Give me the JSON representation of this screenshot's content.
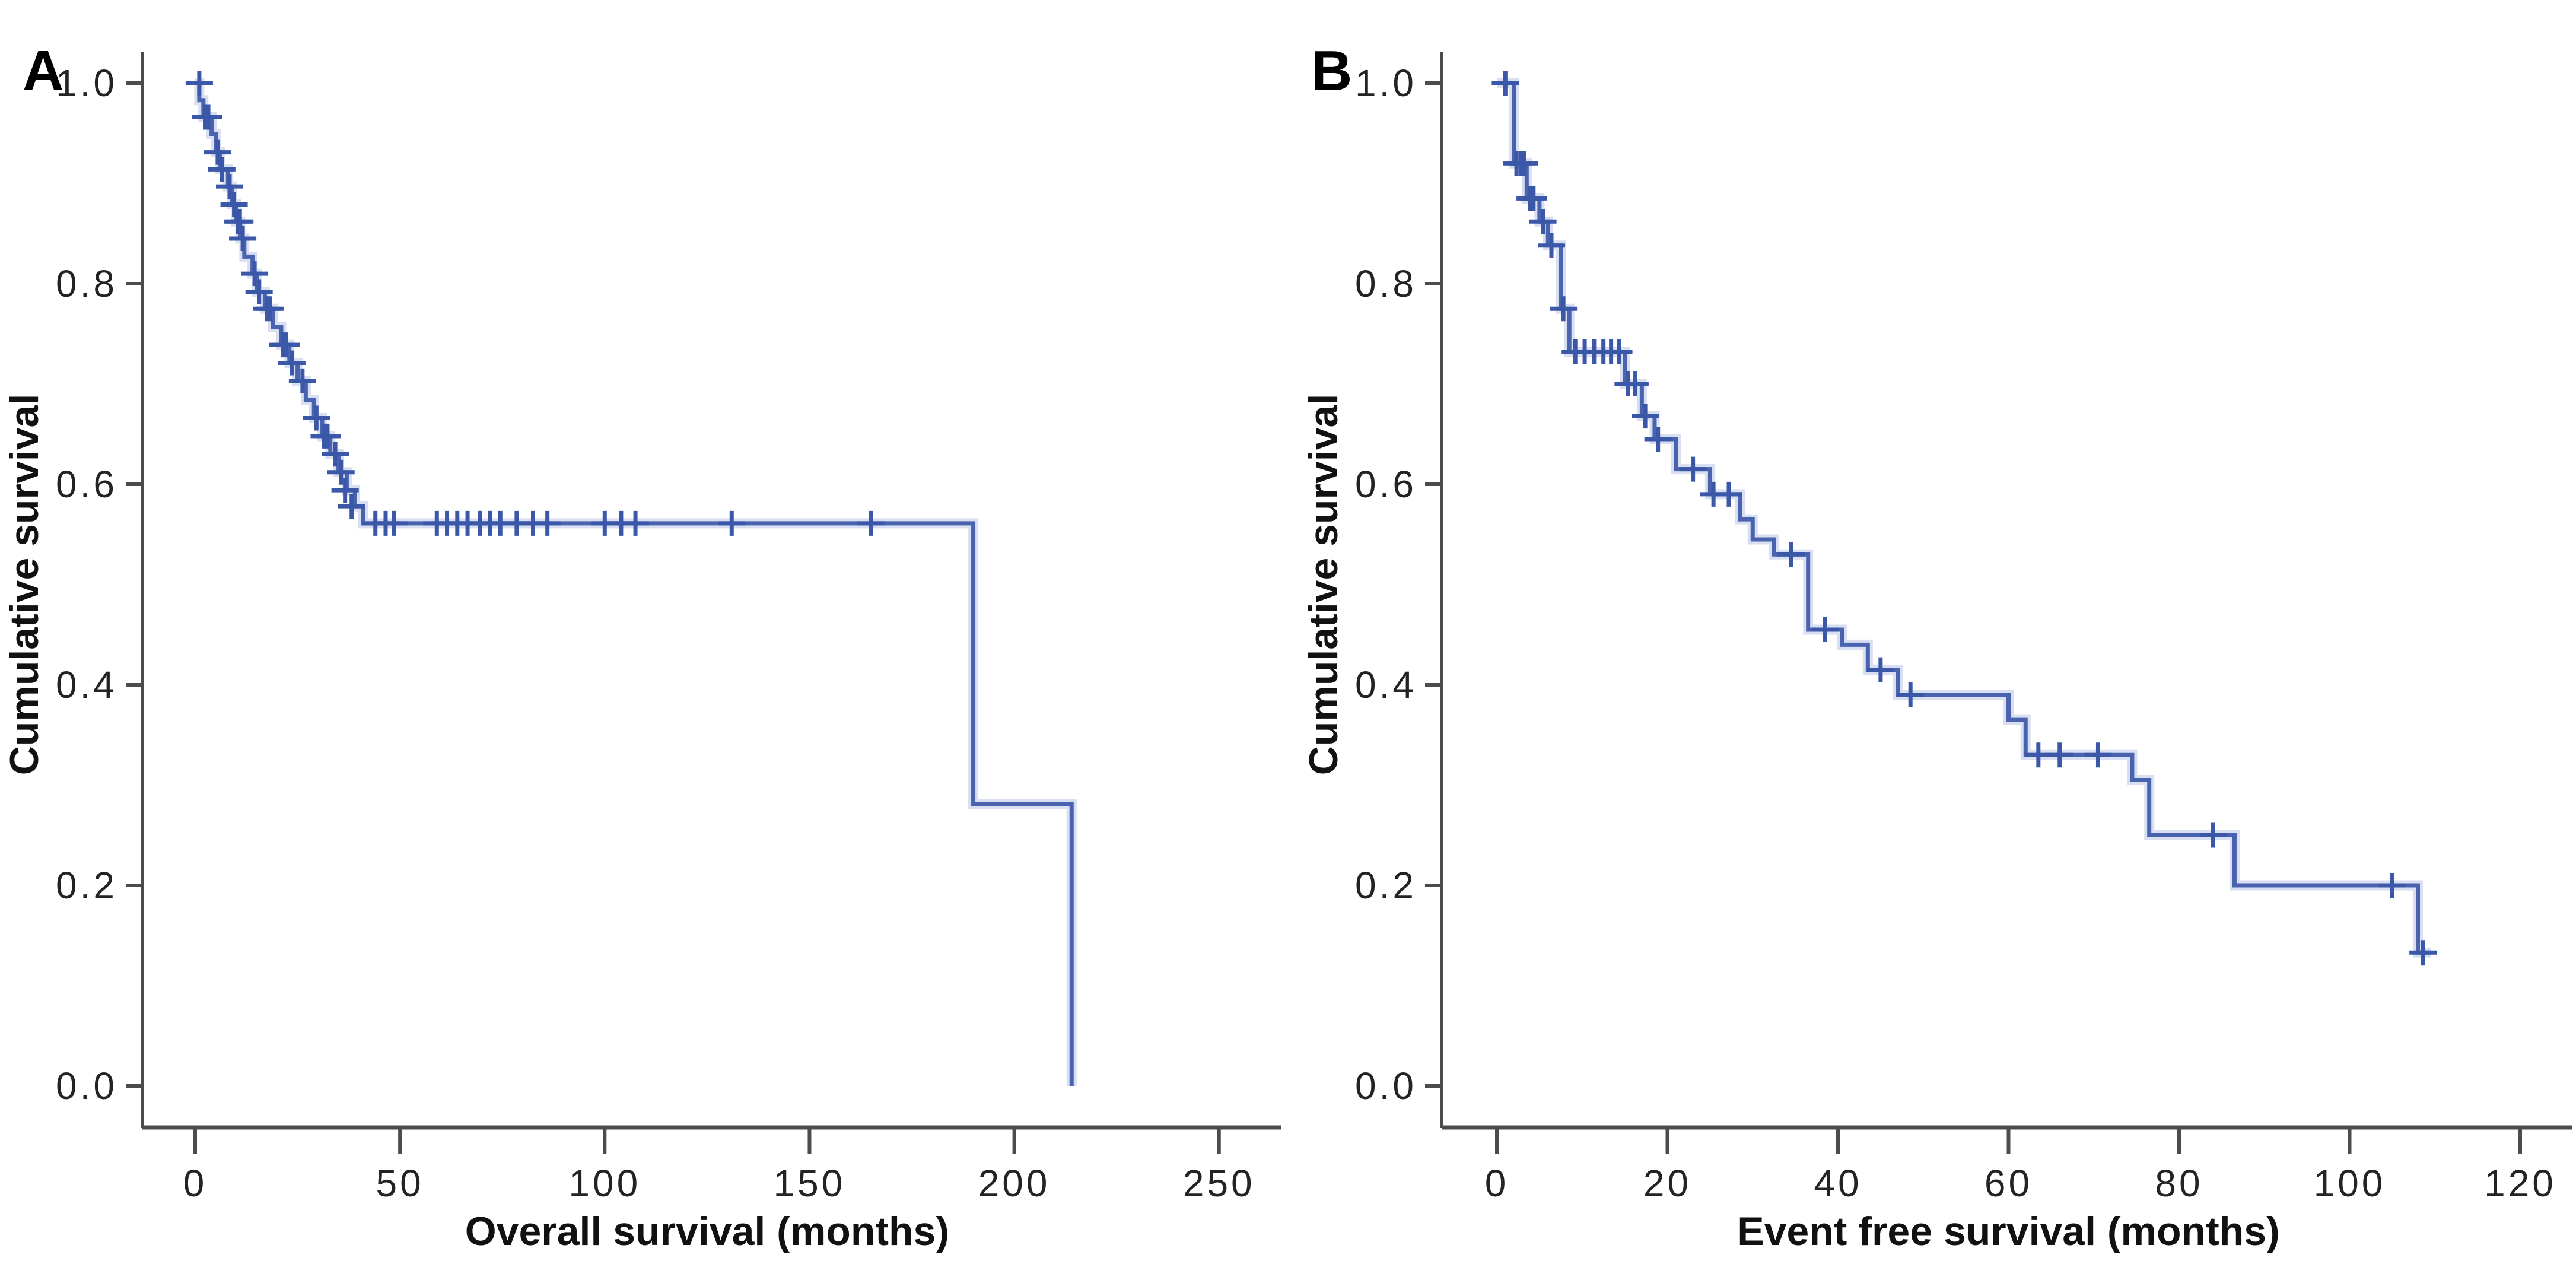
{
  "figure": {
    "background": "#ffffff",
    "curve_color": "#4a63ae",
    "curve_halo_color": "#d9dff2",
    "censor_color": "#3b57a8",
    "axis_color": "#4c4c4c",
    "text_color": "#1f1f1f"
  },
  "chart_data": [
    {
      "type": "line",
      "subtype": "kaplan-meier-step",
      "panel_label": "A",
      "title": "",
      "xlabel": "Overall survival (months)",
      "ylabel": "Cumulative survival",
      "xlim": [
        0,
        250
      ],
      "ylim": [
        0.0,
        1.0
      ],
      "grid": false,
      "legend": false,
      "xticks": [
        0,
        50,
        100,
        150,
        200,
        250
      ],
      "xtick_labels": [
        "0",
        "50",
        "100",
        "150",
        "200",
        "250"
      ],
      "yticks": [
        1.0,
        0.8,
        0.6,
        0.4,
        0.2,
        0.0
      ],
      "ytick_labels": [
        "1.0",
        "0.8",
        "0.6",
        "0.4",
        "0.2",
        "0.0"
      ],
      "series": [
        {
          "name": "Overall survival",
          "end_time": 214,
          "steps": [
            [
              0,
              1.0
            ],
            [
              1,
              0.983
            ],
            [
              2,
              0.966
            ],
            [
              4,
              0.949
            ],
            [
              5,
              0.931
            ],
            [
              6,
              0.914
            ],
            [
              8,
              0.897
            ],
            [
              9,
              0.879
            ],
            [
              10,
              0.862
            ],
            [
              11,
              0.845
            ],
            [
              12,
              0.827
            ],
            [
              14,
              0.81
            ],
            [
              15,
              0.792
            ],
            [
              17,
              0.775
            ],
            [
              19,
              0.757
            ],
            [
              21,
              0.739
            ],
            [
              23,
              0.721
            ],
            [
              25,
              0.703
            ],
            [
              27,
              0.684
            ],
            [
              29,
              0.666
            ],
            [
              31,
              0.648
            ],
            [
              33,
              0.63
            ],
            [
              35,
              0.612
            ],
            [
              37,
              0.594
            ],
            [
              39,
              0.578
            ],
            [
              41,
              0.561
            ],
            [
              190,
              0.281
            ],
            [
              214,
              0.0
            ]
          ],
          "censored": [
            [
              1,
              1.0
            ],
            [
              2.5,
              0.966
            ],
            [
              3.2,
              0.966
            ],
            [
              5.5,
              0.931
            ],
            [
              6.5,
              0.914
            ],
            [
              8.4,
              0.897
            ],
            [
              9.5,
              0.879
            ],
            [
              10.4,
              0.862
            ],
            [
              10.9,
              0.862
            ],
            [
              11.6,
              0.845
            ],
            [
              14.5,
              0.81
            ],
            [
              15.6,
              0.792
            ],
            [
              17.5,
              0.775
            ],
            [
              18.3,
              0.775
            ],
            [
              21.4,
              0.739
            ],
            [
              22.2,
              0.739
            ],
            [
              23.6,
              0.721
            ],
            [
              26.2,
              0.703
            ],
            [
              29.6,
              0.666
            ],
            [
              31.5,
              0.648
            ],
            [
              32.3,
              0.648
            ],
            [
              34.2,
              0.63
            ],
            [
              35.6,
              0.612
            ],
            [
              36.6,
              0.594
            ],
            [
              38.2,
              0.578
            ],
            [
              44,
              0.561
            ],
            [
              46.5,
              0.561
            ],
            [
              48.5,
              0.561
            ],
            [
              59,
              0.561
            ],
            [
              61.5,
              0.561
            ],
            [
              64,
              0.561
            ],
            [
              66.5,
              0.561
            ],
            [
              69.5,
              0.561
            ],
            [
              72,
              0.561
            ],
            [
              74.5,
              0.561
            ],
            [
              78.5,
              0.561
            ],
            [
              82.5,
              0.561
            ],
            [
              86,
              0.561
            ],
            [
              100,
              0.561
            ],
            [
              104,
              0.561
            ],
            [
              107.5,
              0.561
            ],
            [
              131,
              0.561
            ],
            [
              165,
              0.561
            ]
          ]
        }
      ]
    },
    {
      "type": "line",
      "subtype": "kaplan-meier-step",
      "panel_label": "B",
      "title": "",
      "xlabel": "Event free survival (months)",
      "ylabel": "Cumulative survival",
      "xlim": [
        0,
        120
      ],
      "ylim": [
        0.0,
        1.0
      ],
      "grid": false,
      "legend": false,
      "xticks": [
        0,
        20,
        40,
        60,
        80,
        100,
        120
      ],
      "xtick_labels": [
        "0",
        "20",
        "40",
        "60",
        "80",
        "100",
        "120"
      ],
      "yticks": [
        1.0,
        0.8,
        0.6,
        0.4,
        0.2,
        0.0
      ],
      "ytick_labels": [
        "1.0",
        "0.8",
        "0.6",
        "0.4",
        "0.2",
        "0.0"
      ],
      "series": [
        {
          "name": "Event free survival",
          "end_time": 109.5,
          "steps": [
            [
              0,
              1.0
            ],
            [
              2,
              0.92
            ],
            [
              3.5,
              0.885
            ],
            [
              5,
              0.862
            ],
            [
              6,
              0.838
            ],
            [
              7.5,
              0.775
            ],
            [
              8.5,
              0.732
            ],
            [
              15,
              0.7
            ],
            [
              17,
              0.668
            ],
            [
              18.5,
              0.645
            ],
            [
              21,
              0.615
            ],
            [
              25,
              0.59
            ],
            [
              28.5,
              0.565
            ],
            [
              30,
              0.545
            ],
            [
              32.5,
              0.53
            ],
            [
              36.5,
              0.455
            ],
            [
              40.5,
              0.44
            ],
            [
              43.5,
              0.415
            ],
            [
              47,
              0.39
            ],
            [
              60,
              0.365
            ],
            [
              62,
              0.33
            ],
            [
              74.5,
              0.305
            ],
            [
              76.5,
              0.25
            ],
            [
              86.5,
              0.2
            ],
            [
              108,
              0.133
            ]
          ],
          "censored": [
            [
              1,
              1.0
            ],
            [
              2.3,
              0.92
            ],
            [
              2.8,
              0.92
            ],
            [
              3.2,
              0.92
            ],
            [
              3.9,
              0.885
            ],
            [
              4.3,
              0.885
            ],
            [
              5.4,
              0.862
            ],
            [
              6.4,
              0.838
            ],
            [
              7.8,
              0.775
            ],
            [
              9.2,
              0.732
            ],
            [
              10.3,
              0.732
            ],
            [
              11.4,
              0.732
            ],
            [
              12.5,
              0.732
            ],
            [
              13.4,
              0.732
            ],
            [
              14.3,
              0.732
            ],
            [
              15.4,
              0.7
            ],
            [
              16.2,
              0.7
            ],
            [
              17.4,
              0.668
            ],
            [
              18.9,
              0.645
            ],
            [
              23,
              0.615
            ],
            [
              25.4,
              0.59
            ],
            [
              27.2,
              0.59
            ],
            [
              34.5,
              0.53
            ],
            [
              38.5,
              0.455
            ],
            [
              45,
              0.415
            ],
            [
              48.5,
              0.39
            ],
            [
              63.5,
              0.33
            ],
            [
              66,
              0.33
            ],
            [
              70.5,
              0.33
            ],
            [
              84,
              0.25
            ],
            [
              105,
              0.2
            ],
            [
              108.6,
              0.133
            ]
          ]
        }
      ]
    }
  ]
}
